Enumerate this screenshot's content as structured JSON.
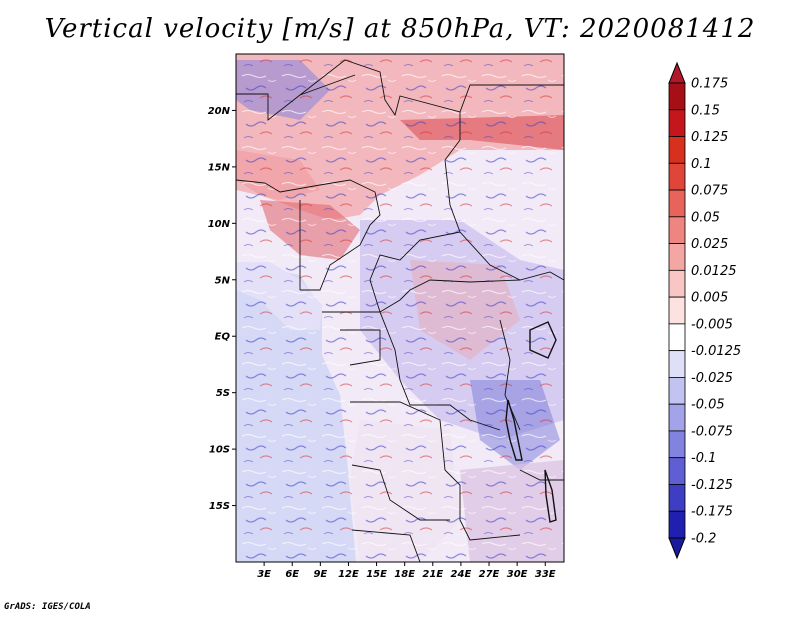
{
  "title": "Vertical velocity [m/s] at 850hPa, VT: 2020081412",
  "credit": "GrADS: IGES/COLA",
  "map": {
    "lon_range": [
      0,
      35
    ],
    "lat_range": [
      -20,
      25
    ],
    "lat_ticks": [
      {
        "value": 20,
        "label": "20N"
      },
      {
        "value": 15,
        "label": "15N"
      },
      {
        "value": 10,
        "label": "10N"
      },
      {
        "value": 5,
        "label": "5N"
      },
      {
        "value": 0,
        "label": "EQ"
      },
      {
        "value": -5,
        "label": "5S"
      },
      {
        "value": -10,
        "label": "10S"
      },
      {
        "value": -15,
        "label": "15S"
      }
    ],
    "lon_ticks": [
      {
        "value": 3,
        "label": "3E"
      },
      {
        "value": 6,
        "label": "6E"
      },
      {
        "value": 9,
        "label": "9E"
      },
      {
        "value": 12,
        "label": "12E"
      },
      {
        "value": 15,
        "label": "15E"
      },
      {
        "value": 18,
        "label": "18E"
      },
      {
        "value": 21,
        "label": "21E"
      },
      {
        "value": 24,
        "label": "24E"
      },
      {
        "value": 27,
        "label": "27E"
      },
      {
        "value": 30,
        "label": "30E"
      },
      {
        "value": 33,
        "label": "33E"
      }
    ]
  },
  "colorbar": {
    "levels": [
      {
        "label": "0.175",
        "color": "#a50f15"
      },
      {
        "label": "0.15",
        "color": "#c4161c"
      },
      {
        "label": "0.125",
        "color": "#d7301f"
      },
      {
        "label": "0.1",
        "color": "#e0453a"
      },
      {
        "label": "0.075",
        "color": "#e8645a"
      },
      {
        "label": "0.05",
        "color": "#ee8580"
      },
      {
        "label": "0.025",
        "color": "#f4a6a3"
      },
      {
        "label": "0.0125",
        "color": "#f8c6c4"
      },
      {
        "label": "0.005",
        "color": "#fce3e2"
      },
      {
        "label": "-0.005",
        "color": "#ffffff"
      },
      {
        "label": "-0.0125",
        "color": "#dfdff8"
      },
      {
        "label": "-0.025",
        "color": "#c3c3f2"
      },
      {
        "label": "-0.05",
        "color": "#a3a3ea"
      },
      {
        "label": "-0.075",
        "color": "#8282e0"
      },
      {
        "label": "-0.1",
        "color": "#5f5fd3"
      },
      {
        "label": "-0.125",
        "color": "#3e3ec4"
      },
      {
        "label": "-0.175",
        "color": "#2020b0"
      },
      {
        "label": "-0.2",
        "color": "#12129a"
      }
    ],
    "top_color": "#b2182b",
    "bottom_color": "#1a1a9c"
  }
}
